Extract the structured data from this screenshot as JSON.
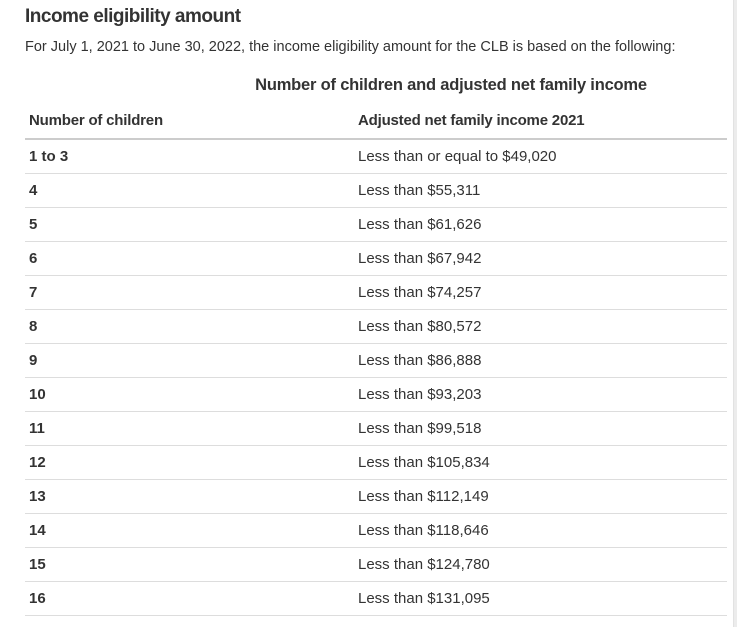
{
  "page": {
    "title": "Income eligibility amount",
    "intro": "For July 1, 2021 to June 30, 2022, the income eligibility amount for the CLB is based on the following:"
  },
  "table": {
    "caption": "Number of children and adjusted net family income",
    "columns": {
      "children": "Number of children",
      "income": "Adjusted net family income 2021"
    },
    "rows": [
      {
        "children": "1 to 3",
        "income": "Less than or equal to $49,020"
      },
      {
        "children": "4",
        "income": "Less than $55,311"
      },
      {
        "children": "5",
        "income": "Less than $61,626"
      },
      {
        "children": "6",
        "income": "Less than $67,942"
      },
      {
        "children": "7",
        "income": "Less than $74,257"
      },
      {
        "children": "8",
        "income": "Less than $80,572"
      },
      {
        "children": "9",
        "income": "Less than $86,888"
      },
      {
        "children": "10",
        "income": "Less than $93,203"
      },
      {
        "children": "11",
        "income": "Less than $99,518"
      },
      {
        "children": "12",
        "income": "Less than $105,834"
      },
      {
        "children": "13",
        "income": "Less than $112,149"
      },
      {
        "children": "14",
        "income": "Less than $118,646"
      },
      {
        "children": "15",
        "income": "Less than $124,780"
      },
      {
        "children": "16",
        "income": "Less than $131,095"
      }
    ]
  },
  "colors": {
    "text": "#333333",
    "row_border": "#dddddd",
    "header_border": "#cccccc",
    "scrollbar_track": "#ececec",
    "background": "#ffffff"
  }
}
